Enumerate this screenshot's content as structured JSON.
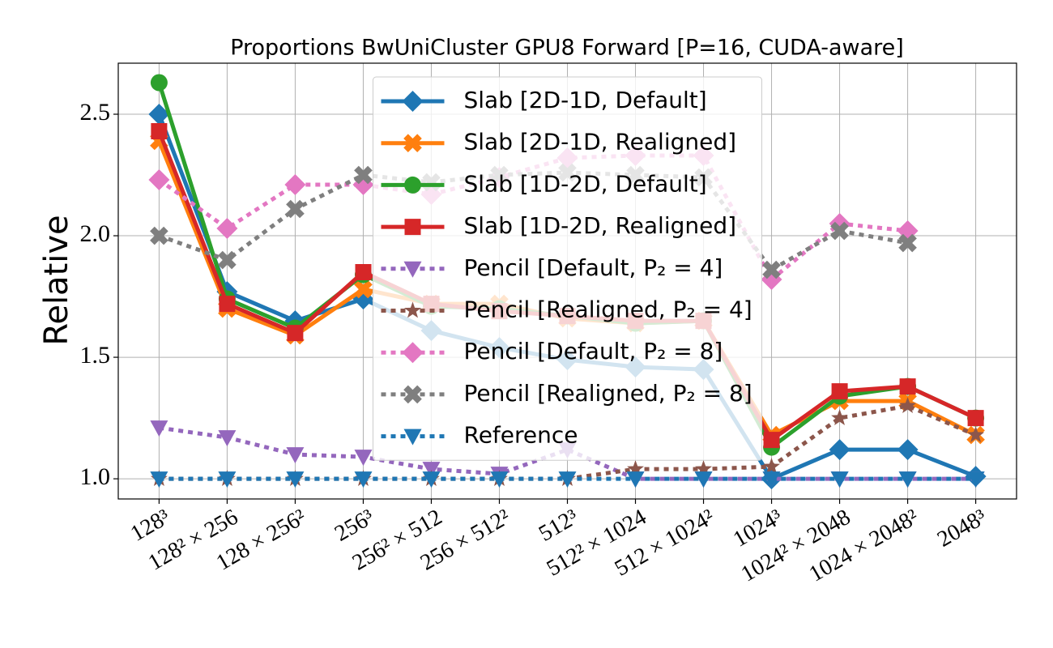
{
  "chart_data": {
    "type": "line",
    "title": "Proportions BwUniCluster GPU8 Forward [P=16, CUDA-aware]",
    "y_label": "Relative",
    "categories": [
      "128³",
      "128² × 256",
      "128 × 256²",
      "256³",
      "256² × 512",
      "256 × 512²",
      "512³",
      "512² × 1024",
      "512 × 1024²",
      "1024³",
      "1024² × 2048",
      "1024 × 2048²",
      "2048³"
    ],
    "ylim": [
      0.917,
      2.71
    ],
    "yticks": [
      {
        "value": 1,
        "label": "1.0"
      },
      1.5,
      {
        "value": 2,
        "label": "2.0"
      },
      2.5
    ],
    "grid": true,
    "legend_loc": "upper center",
    "series": [
      {
        "name": "Slab [2D-1D, Default]",
        "color": "#1f77b4",
        "marker": "diamond",
        "linestyle": "solid",
        "values": [
          2.5,
          1.77,
          1.65,
          1.74,
          1.61,
          1.54,
          1.49,
          1.46,
          1.45,
          1.0,
          1.12,
          1.12,
          1.01
        ]
      },
      {
        "name": "Slab [2D-1D, Realigned]",
        "color": "#ff7f0e",
        "marker": "x",
        "linestyle": "solid",
        "values": [
          2.39,
          1.7,
          1.59,
          1.78,
          1.72,
          1.72,
          1.66,
          1.64,
          1.65,
          1.18,
          1.32,
          1.32,
          1.18
        ]
      },
      {
        "name": "Slab [1D-2D, Default]",
        "color": "#2ca02c",
        "marker": "circle",
        "linestyle": "solid",
        "values": [
          2.63,
          1.74,
          1.62,
          1.84,
          1.71,
          1.7,
          1.67,
          1.64,
          1.65,
          1.13,
          1.34,
          1.38,
          1.25
        ]
      },
      {
        "name": "Slab [1D-2D, Realigned]",
        "color": "#d62728",
        "marker": "square",
        "linestyle": "solid",
        "values": [
          2.43,
          1.72,
          1.6,
          1.85,
          1.72,
          1.69,
          1.67,
          1.65,
          1.65,
          1.16,
          1.36,
          1.38,
          1.25
        ]
      },
      {
        "name": "Pencil [Default, P₂ = 4]",
        "color": "#9467bd",
        "marker": "triangle-down",
        "linestyle": "dotted",
        "values": [
          1.21,
          1.17,
          1.1,
          1.09,
          1.04,
          1.02,
          1.12,
          1.0,
          1.0,
          1.0,
          1.0,
          1.0,
          1.0
        ]
      },
      {
        "name": "Pencil [Realigned, P₂ = 4]",
        "color": "#8c564b",
        "marker": "star",
        "linestyle": "dotted",
        "values": [
          1.0,
          1.0,
          1.0,
          1.0,
          1.0,
          1.0,
          1.0,
          1.04,
          1.04,
          1.05,
          1.25,
          1.3,
          1.18
        ]
      },
      {
        "name": "Pencil [Default, P₂ = 8]",
        "color": "#e377c2",
        "marker": "diamond",
        "linestyle": "dotted",
        "values": [
          2.23,
          2.03,
          2.21,
          2.21,
          2.17,
          2.24,
          2.32,
          2.33,
          2.33,
          1.82,
          2.05,
          2.02,
          null
        ]
      },
      {
        "name": "Pencil [Realigned, P₂ = 8]",
        "color": "#7f7f7f",
        "marker": "x",
        "linestyle": "dotted",
        "values": [
          2.0,
          1.9,
          2.11,
          2.25,
          2.22,
          2.25,
          2.26,
          2.25,
          2.24,
          1.86,
          2.02,
          1.97,
          null
        ]
      },
      {
        "name": "Reference",
        "color": "#1f77b4",
        "marker": "triangle-down",
        "linestyle": "dotted",
        "values": [
          1,
          1,
          1,
          1,
          1,
          1,
          1,
          1,
          1,
          1,
          1,
          1,
          1
        ]
      }
    ]
  }
}
